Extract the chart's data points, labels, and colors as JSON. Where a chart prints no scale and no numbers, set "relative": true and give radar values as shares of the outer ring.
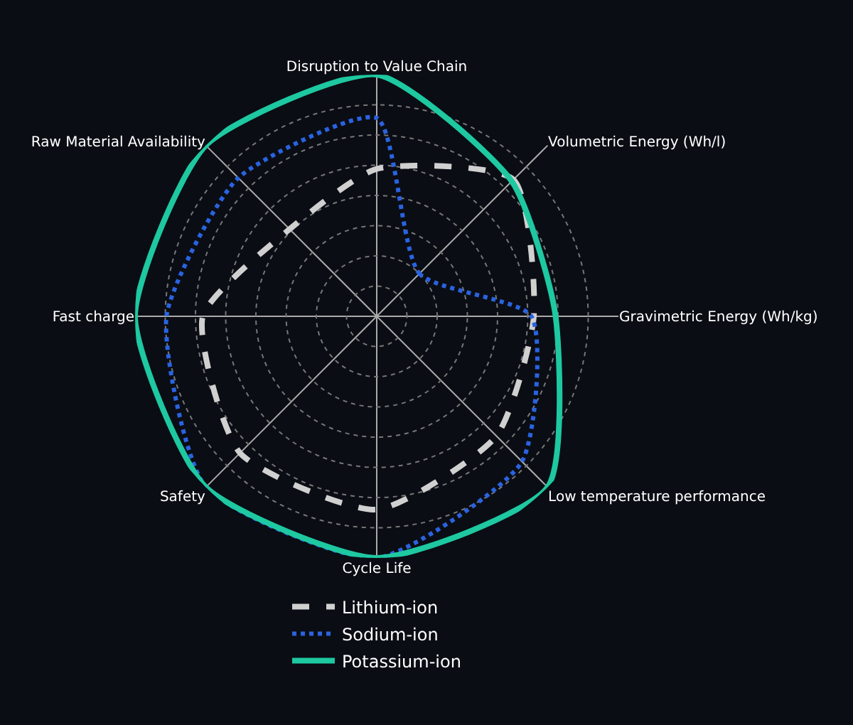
{
  "chart_data": {
    "type": "radar",
    "relative": true,
    "grid": true,
    "legend": "bottom",
    "marker": "none",
    "categories": [
      "Disruption to Value Chain",
      "Volumetric Energy (Wh/l)",
      "Gravimetric Energy (Wh/kg)",
      "Low temperature performance",
      "Cycle Life",
      "Safety",
      "Fast charge",
      "Raw Material Availability"
    ],
    "series": [
      {
        "name": "Lithium-ion",
        "color": "#d0d0d0",
        "line_style": "dashed",
        "values": [
          0.61,
          0.8,
          0.65,
          0.7,
          0.8,
          0.8,
          0.72,
          0.51
        ]
      },
      {
        "name": "Sodium-ion",
        "color": "#2a63e0",
        "line_style": "dotted",
        "values": [
          0.82,
          0.25,
          0.64,
          0.85,
          1.0,
          1.0,
          0.87,
          0.81
        ]
      },
      {
        "name": "Potassium-ion",
        "color": "#1ec8a0",
        "line_style": "solid",
        "values": [
          1.0,
          0.79,
          0.74,
          1.0,
          1.0,
          1.0,
          1.0,
          1.0
        ]
      }
    ]
  }
}
